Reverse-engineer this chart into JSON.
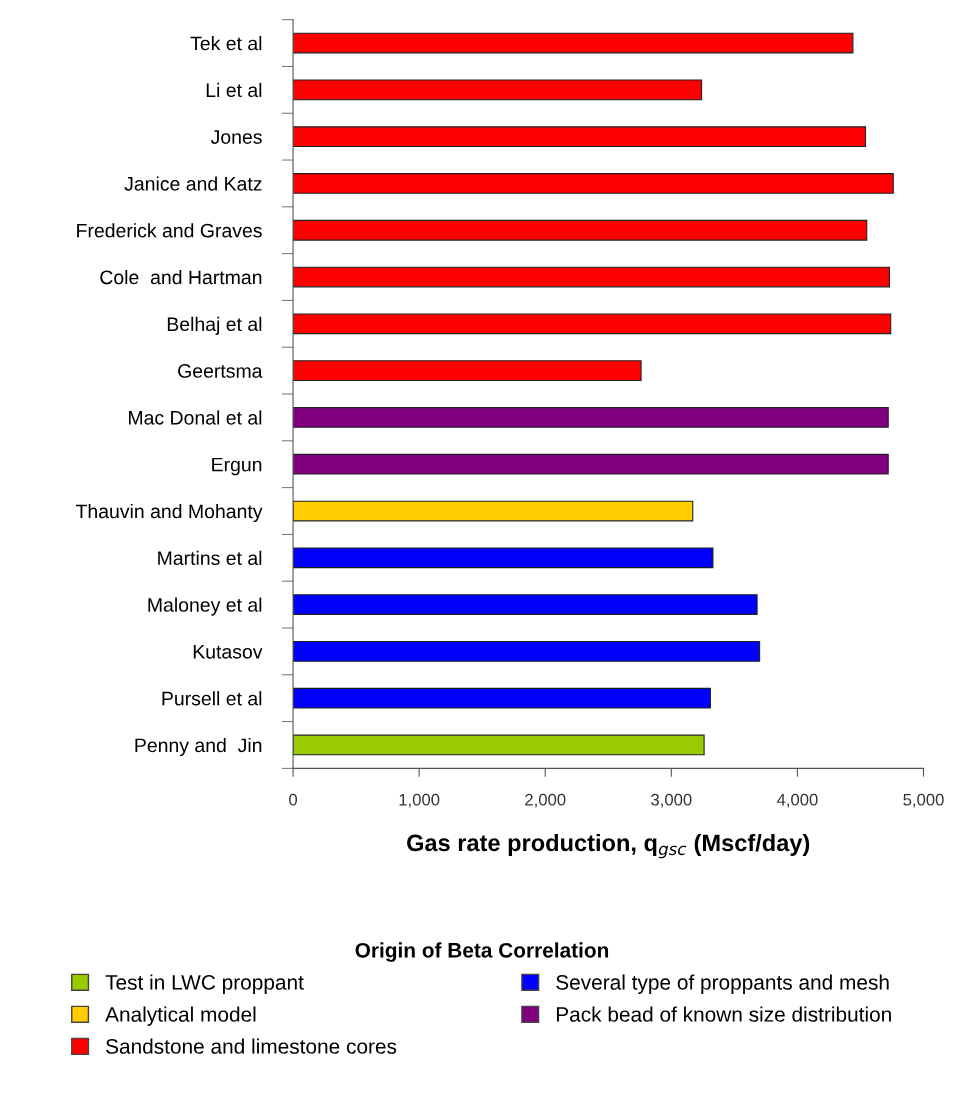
{
  "chart_data": {
    "type": "bar",
    "orientation": "horizontal",
    "xlabel": "Gas rate production, q$_{gsc}$ (Mscf/day)",
    "legend_title": "Origin of Beta Correlation",
    "categories": [
      "Tek et al",
      "Li et al",
      "Jones",
      "Janice and Katz",
      "Frederick and Graves",
      "Cole  and Hartman",
      "Belhaj et al",
      "Geertsma",
      "Mac Donal et al",
      "Ergun",
      "Thauvin and Mohanty",
      "Martins et al",
      "Maloney et al",
      "Kutasov",
      "Pursell et al",
      "Penny and  Jin"
    ],
    "series": [
      {
        "name": "Test in LWC proppant",
        "color": "#99cc00",
        "values": [
          null,
          null,
          null,
          null,
          null,
          null,
          null,
          null,
          null,
          null,
          null,
          null,
          null,
          null,
          null,
          3260
        ]
      },
      {
        "name": "Analytical model",
        "color": "#ffcc00",
        "values": [
          null,
          null,
          null,
          null,
          null,
          null,
          null,
          null,
          null,
          null,
          3170,
          null,
          null,
          null,
          null,
          null
        ]
      },
      {
        "name": "Sandstone and limestone cores",
        "color": "#ff0000",
        "values": [
          4440,
          3240,
          4540,
          4760,
          4550,
          4730,
          4740,
          2760,
          null,
          null,
          null,
          null,
          null,
          null,
          null,
          null
        ]
      },
      {
        "name": "Several type of proppants and mesh",
        "color": "#0000ff",
        "values": [
          null,
          null,
          null,
          null,
          null,
          null,
          null,
          null,
          null,
          null,
          null,
          3330,
          3680,
          3700,
          3310,
          null
        ]
      },
      {
        "name": "Pack bead of known size distribution",
        "color": "#800080",
        "values": [
          null,
          null,
          null,
          null,
          null,
          null,
          null,
          null,
          4720,
          4720,
          null,
          null,
          null,
          null,
          null,
          null
        ]
      }
    ],
    "xlim": [
      0,
      5000
    ],
    "xticks": [
      {
        "value": 0,
        "label": "0"
      },
      {
        "value": 1000,
        "label": "1,000"
      },
      {
        "value": 2000,
        "label": "2,000"
      },
      {
        "value": 3000,
        "label": "3,000"
      },
      {
        "value": 4000,
        "label": "4,000"
      },
      {
        "value": 5000,
        "label": "5,000"
      }
    ],
    "grid": false,
    "legend": "bottom"
  }
}
